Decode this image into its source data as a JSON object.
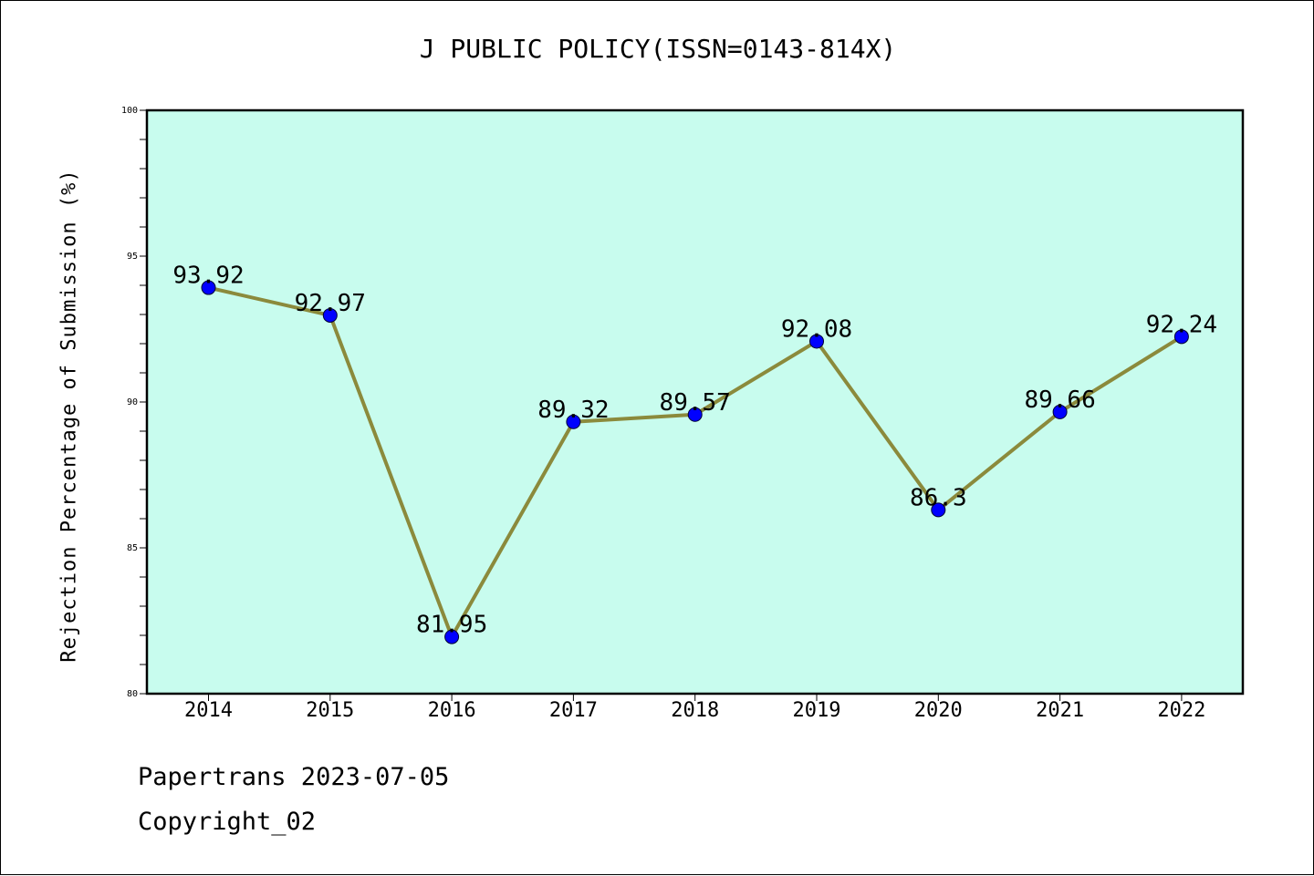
{
  "chart_data": {
    "type": "line",
    "title": "J PUBLIC POLICY(ISSN=0143-814X)",
    "xlabel": "",
    "ylabel": "Rejection Percentage of Submission (%)",
    "categories": [
      "2014",
      "2015",
      "2016",
      "2017",
      "2018",
      "2019",
      "2020",
      "2021",
      "2022"
    ],
    "values": [
      93.92,
      92.97,
      81.95,
      89.32,
      89.57,
      92.08,
      86.3,
      89.66,
      92.24
    ],
    "value_labels": [
      "93.92",
      "92.97",
      "81.95",
      "89.32",
      "89.57",
      "92.08",
      "86.3",
      "89.66",
      "92.24"
    ],
    "ylim": [
      80,
      100
    ],
    "yticks": [
      80,
      85,
      90,
      95,
      100
    ],
    "grid": false,
    "colors": {
      "plot_background": "#c8fcee",
      "line": "#8b8a3c",
      "marker": "#0000ff"
    }
  },
  "footer": {
    "line1": "Papertrans 2023-07-05",
    "line2": "Copyright_02"
  }
}
